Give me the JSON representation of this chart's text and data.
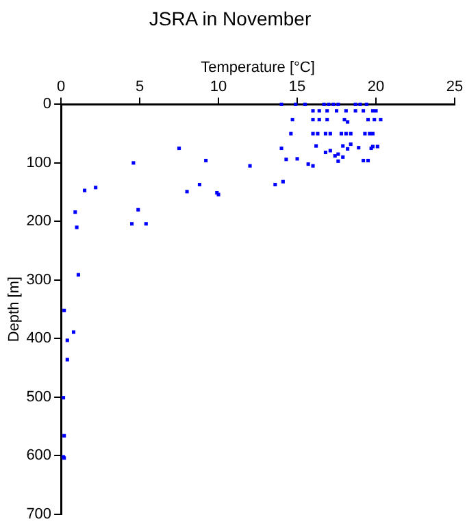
{
  "chart_data": {
    "type": "scatter",
    "title": "JSRA in November",
    "xlabel": "Temperature [°C]",
    "ylabel": "Depth [m]",
    "xlim": [
      0,
      25
    ],
    "xticks": [
      0,
      5,
      10,
      15,
      20,
      25
    ],
    "ylim": [
      700,
      0
    ],
    "yticks": [
      0,
      100,
      200,
      300,
      400,
      500,
      600,
      700
    ],
    "grid": false,
    "legend": false,
    "marker": "square",
    "series": [
      {
        "color": "#0000ff",
        "x": [
          14.0,
          14.9,
          15.5,
          16.7,
          17.0,
          17.3,
          17.6,
          18.7,
          19.0,
          19.4,
          16.0,
          16.4,
          16.9,
          17.5,
          18.1,
          18.7,
          19.2,
          19.8,
          20.0,
          14.7,
          16.0,
          16.4,
          16.9,
          18.0,
          18.2,
          19.5,
          19.9,
          20.3,
          14.6,
          16.0,
          16.3,
          16.8,
          17.1,
          17.8,
          18.1,
          18.4,
          19.3,
          19.6,
          19.8,
          16.2,
          17.9,
          18.4,
          19.8,
          20.1,
          7.5,
          14.0,
          18.2,
          18.9,
          19.7,
          16.8,
          17.1,
          17.4,
          17.6,
          17.9,
          17.6,
          14.3,
          15.0,
          9.2,
          19.2,
          19.5,
          4.6,
          15.7,
          16.0,
          12.0,
          14.1,
          13.6,
          8.8,
          1.5,
          2.2,
          8.0,
          9.9,
          10.0,
          4.9,
          0.9,
          1.0,
          4.5,
          5.4,
          1.1,
          0.2,
          0.8,
          0.4,
          0.4,
          0.15,
          0.2,
          0.15,
          0.2
        ],
        "values": [
          0,
          0,
          0,
          0,
          0,
          0,
          0,
          0,
          0,
          0,
          11,
          11,
          11,
          11,
          11,
          11,
          11,
          11,
          11,
          26,
          26,
          26,
          26,
          26,
          30,
          26,
          26,
          26,
          50,
          50,
          50,
          50,
          50,
          50,
          50,
          50,
          50,
          50,
          50,
          71,
          71,
          68,
          72,
          72,
          75,
          75,
          76,
          74,
          75,
          82,
          79,
          88,
          85,
          90,
          97,
          94,
          93,
          96,
          96,
          96,
          100,
          102,
          105,
          105,
          132,
          137,
          137,
          147,
          142,
          149,
          151,
          154,
          180,
          184,
          210,
          204,
          204,
          291,
          352,
          389,
          403,
          436,
          501,
          566,
          602,
          604
        ]
      }
    ]
  }
}
